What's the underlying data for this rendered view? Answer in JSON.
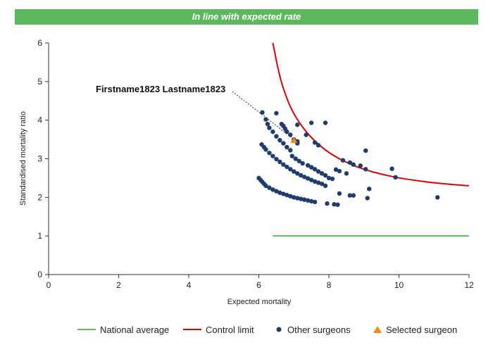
{
  "banner": {
    "text": "In line with expected rate"
  },
  "colors": {
    "banner": "#5cb85c",
    "national_average": "#5cb85c",
    "control_limit": "#e00000",
    "other_surgeons": "#1f3c6e",
    "selected_surgeon": "#f08a1c"
  },
  "chart_data": {
    "type": "scatter",
    "xlabel": "Expected mortality",
    "ylabel": "Standardised mortality ratio",
    "xlim": [
      0,
      12
    ],
    "ylim": [
      0,
      6
    ],
    "xticks": [
      0,
      2,
      4,
      6,
      8,
      10,
      12
    ],
    "yticks": [
      0,
      1,
      2,
      3,
      4,
      5,
      6
    ],
    "grid": false,
    "legend_position": "bottom",
    "annotation": {
      "text": "Firstname1823 Lastname1823",
      "points_to": [
        7.0,
        3.48
      ]
    },
    "series": [
      {
        "name": "National average",
        "kind": "line",
        "x": [
          6.4,
          12.0
        ],
        "y": [
          1.0,
          1.0
        ]
      },
      {
        "name": "Control limit",
        "kind": "line",
        "x": [
          6.4,
          6.6,
          6.8,
          7.0,
          7.3,
          7.6,
          8.0,
          8.5,
          9.0,
          9.5,
          10.0,
          11.0,
          12.0
        ],
        "y": [
          6.0,
          5.1,
          4.55,
          4.15,
          3.75,
          3.45,
          3.15,
          2.9,
          2.72,
          2.6,
          2.5,
          2.37,
          2.3
        ]
      },
      {
        "name": "Other surgeons",
        "kind": "scatter",
        "points": [
          [
            6.1,
            4.2
          ],
          [
            6.5,
            4.18
          ],
          [
            6.2,
            4.02
          ],
          [
            6.25,
            3.9
          ],
          [
            6.3,
            3.8
          ],
          [
            6.4,
            3.7
          ],
          [
            6.5,
            3.58
          ],
          [
            6.6,
            3.48
          ],
          [
            6.7,
            3.4
          ],
          [
            6.65,
            3.9
          ],
          [
            6.7,
            3.85
          ],
          [
            6.75,
            3.78
          ],
          [
            6.8,
            3.7
          ],
          [
            6.9,
            3.62
          ],
          [
            7.0,
            3.5
          ],
          [
            7.1,
            3.45
          ],
          [
            7.1,
            3.88
          ],
          [
            7.5,
            3.93
          ],
          [
            7.9,
            3.93
          ],
          [
            7.35,
            3.62
          ],
          [
            7.6,
            3.42
          ],
          [
            7.7,
            3.35
          ],
          [
            6.8,
            3.3
          ],
          [
            6.9,
            3.22
          ],
          [
            7.1,
            3.4
          ],
          [
            6.08,
            3.37
          ],
          [
            6.15,
            3.3
          ],
          [
            6.2,
            3.24
          ],
          [
            6.3,
            3.15
          ],
          [
            6.4,
            3.07
          ],
          [
            6.5,
            2.99
          ],
          [
            6.6,
            2.92
          ],
          [
            6.7,
            2.85
          ],
          [
            6.8,
            2.79
          ],
          [
            6.9,
            2.73
          ],
          [
            7.0,
            2.67
          ],
          [
            7.1,
            2.62
          ],
          [
            7.2,
            2.57
          ],
          [
            7.3,
            2.53
          ],
          [
            7.4,
            2.49
          ],
          [
            7.5,
            2.45
          ],
          [
            7.6,
            2.41
          ],
          [
            7.7,
            2.38
          ],
          [
            7.8,
            2.35
          ],
          [
            7.9,
            2.3
          ],
          [
            6.95,
            3.07
          ],
          [
            7.05,
            3.0
          ],
          [
            7.15,
            2.94
          ],
          [
            7.25,
            2.88
          ],
          [
            7.4,
            2.83
          ],
          [
            7.5,
            2.78
          ],
          [
            7.6,
            2.73
          ],
          [
            7.7,
            2.67
          ],
          [
            7.8,
            2.62
          ],
          [
            7.9,
            2.57
          ],
          [
            8.0,
            2.5
          ],
          [
            8.1,
            2.48
          ],
          [
            8.2,
            2.72
          ],
          [
            8.3,
            2.68
          ],
          [
            8.4,
            2.96
          ],
          [
            8.5,
            2.62
          ],
          [
            8.6,
            2.9
          ],
          [
            8.7,
            2.85
          ],
          [
            8.9,
            2.82
          ],
          [
            9.05,
            2.73
          ],
          [
            9.05,
            3.21
          ],
          [
            9.8,
            2.74
          ],
          [
            9.9,
            2.52
          ],
          [
            9.15,
            2.22
          ],
          [
            9.1,
            1.98
          ],
          [
            8.6,
            2.05
          ],
          [
            8.7,
            2.05
          ],
          [
            8.3,
            2.1
          ],
          [
            6.0,
            2.5
          ],
          [
            6.05,
            2.45
          ],
          [
            6.1,
            2.4
          ],
          [
            6.15,
            2.35
          ],
          [
            6.2,
            2.3
          ],
          [
            6.3,
            2.25
          ],
          [
            6.4,
            2.2
          ],
          [
            6.5,
            2.16
          ],
          [
            6.6,
            2.12
          ],
          [
            6.7,
            2.09
          ],
          [
            6.8,
            2.06
          ],
          [
            6.9,
            2.03
          ],
          [
            7.0,
            2.0
          ],
          [
            7.1,
            1.98
          ],
          [
            7.2,
            1.96
          ],
          [
            7.3,
            1.94
          ],
          [
            7.4,
            1.92
          ],
          [
            7.5,
            1.9
          ],
          [
            7.6,
            1.88
          ],
          [
            7.95,
            1.84
          ],
          [
            8.15,
            1.82
          ],
          [
            8.25,
            1.81
          ],
          [
            11.1,
            2.0
          ]
        ]
      },
      {
        "name": "Selected surgeon",
        "kind": "scatter",
        "marker": "triangle",
        "points": [
          [
            7.0,
            3.48
          ]
        ]
      }
    ]
  }
}
